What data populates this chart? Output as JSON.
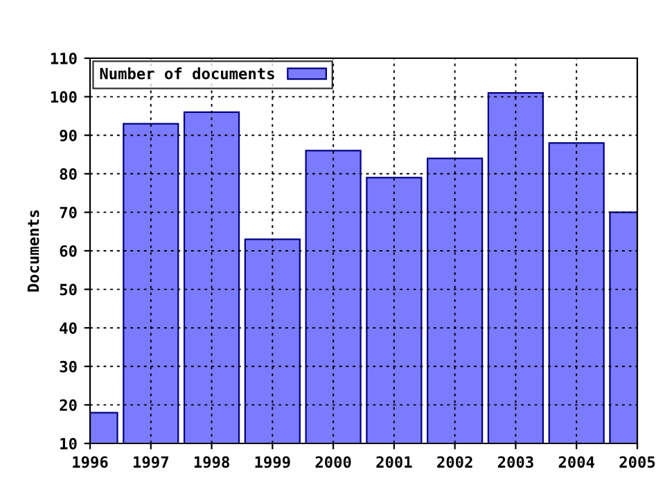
{
  "chart_data": {
    "type": "bar",
    "ylabel": "Documents",
    "x": [
      1996,
      1997,
      1998,
      1999,
      2000,
      2001,
      2002,
      2003,
      2004,
      2005
    ],
    "series": [
      {
        "name": "Number of documents",
        "color": "#7b7bff",
        "values": [
          18,
          93,
          96,
          63,
          86,
          79,
          84,
          101,
          88,
          70
        ]
      }
    ],
    "xlim": [
      1996,
      2005
    ],
    "xticks": [
      1996,
      1997,
      1998,
      1999,
      2000,
      2001,
      2002,
      2003,
      2004,
      2005
    ],
    "ylim": [
      10,
      110
    ],
    "yticks": [
      10,
      20,
      30,
      40,
      50,
      60,
      70,
      80,
      90,
      100,
      110
    ],
    "grid": true,
    "legend": "top left"
  }
}
